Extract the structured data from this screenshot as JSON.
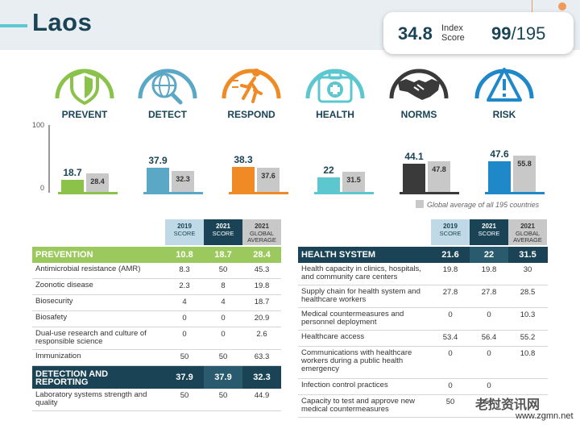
{
  "header": {
    "title": "Laos",
    "index_score": "34.8",
    "index_score_label_line1": "Index",
    "index_score_label_line2": "Score",
    "rank": "99",
    "rank_total": "/195"
  },
  "categories": [
    {
      "label": "PREVENT",
      "icon": "shield-icon",
      "color": "#8bc34a"
    },
    {
      "label": "DETECT",
      "icon": "globe-magnifier-icon",
      "color": "#5aa7c6"
    },
    {
      "label": "RESPOND",
      "icon": "running-person-icon",
      "color": "#f08a24"
    },
    {
      "label": "HEALTH",
      "icon": "medical-kit-icon",
      "color": "#5dc7cf"
    },
    {
      "label": "NORMS",
      "icon": "handshake-icon",
      "color": "#3a3a3a"
    },
    {
      "label": "RISK",
      "icon": "warning-icon",
      "color": "#1f88c9"
    }
  ],
  "chart_data": {
    "type": "bar",
    "categories": [
      "PREVENT",
      "DETECT",
      "RESPOND",
      "HEALTH",
      "NORMS",
      "RISK"
    ],
    "series": [
      {
        "name": "Laos",
        "values": [
          18.7,
          37.9,
          38.3,
          22,
          44.1,
          47.6
        ],
        "value_labels": [
          "18.7",
          "37.9",
          "38.3",
          "22",
          "44.1",
          "47.6"
        ]
      },
      {
        "name": "Global average of all 195 countries",
        "values": [
          28.4,
          32.3,
          37.6,
          31.5,
          47.8,
          55.8
        ],
        "value_labels": [
          "28.4",
          "32.3",
          "37.6",
          "31.5",
          "47.8",
          "55.8"
        ]
      }
    ],
    "colors": [
      "#8bc34a",
      "#5aa7c6",
      "#f08a24",
      "#5dc7cf",
      "#3a3a3a",
      "#1f88c9"
    ],
    "global_color": "#c8c8c8",
    "ylim": [
      0,
      100
    ],
    "ytick_labels": [
      "100",
      "0"
    ],
    "legend": "Global average of all 195 countries",
    "legend_position": "bottom-right"
  },
  "table_headers": [
    {
      "line1": "2019",
      "line2": "SCORE"
    },
    {
      "line1": "2021",
      "line2": "SCORE"
    },
    {
      "line1": "2021",
      "line2": "GLOBAL",
      "line3": "AVERAGE"
    }
  ],
  "left_table": [
    {
      "label": "PREVENTION",
      "v": [
        "10.8",
        "18.7",
        "28.4"
      ],
      "section": true,
      "color": "green"
    },
    {
      "label": "Antimicrobial resistance (AMR)",
      "v": [
        "8.3",
        "50",
        "45.3"
      ]
    },
    {
      "label": "Zoonotic disease",
      "v": [
        "2.3",
        "8",
        "19.8"
      ]
    },
    {
      "label": "Biosecurity",
      "v": [
        "4",
        "4",
        "18.7"
      ]
    },
    {
      "label": "Biosafety",
      "v": [
        "0",
        "0",
        "20.9"
      ]
    },
    {
      "label": "Dual-use research and culture of responsible science",
      "v": [
        "0",
        "0",
        "2.6"
      ],
      "two_line": true
    },
    {
      "label": "Immunization",
      "v": [
        "50",
        "50",
        "63.3"
      ]
    },
    {
      "label": "DETECTION AND REPORTING",
      "v": [
        "37.9",
        "37.9",
        "32.3"
      ],
      "section": true,
      "color": "blue",
      "two_line": true
    },
    {
      "label": "Laboratory systems strength and quality",
      "v": [
        "50",
        "50",
        "44.9"
      ],
      "two_line": true
    }
  ],
  "right_table": [
    {
      "label": "HEALTH SYSTEM",
      "v": [
        "21.6",
        "22",
        "31.5"
      ],
      "section": true,
      "color": "blue"
    },
    {
      "label": "Health capacity in clinics, hospitals, and community care centers",
      "v": [
        "19.8",
        "19.8",
        "30"
      ],
      "two_line": true
    },
    {
      "label": "Supply chain for health system and healthcare workers",
      "v": [
        "27.8",
        "27.8",
        "28.5"
      ],
      "two_line": true
    },
    {
      "label": "Medical countermeasures and personnel deployment",
      "v": [
        "0",
        "0",
        "10.3"
      ],
      "two_line": true
    },
    {
      "label": "Healthcare access",
      "v": [
        "53.4",
        "56.4",
        "55.2"
      ]
    },
    {
      "label": "Communications with healthcare workers during a public health emergency",
      "v": [
        "0",
        "0",
        "10.8"
      ],
      "three_line": true
    },
    {
      "label": "Infection control practices",
      "v": [
        "0",
        "0",
        ""
      ]
    },
    {
      "label": "Capacity to test and approve new medical countermeasures",
      "v": [
        "50",
        "50",
        ""
      ],
      "two_line": true
    }
  ],
  "watermark": {
    "text": "老挝资讯网",
    "url": "www.zgmn.net"
  }
}
